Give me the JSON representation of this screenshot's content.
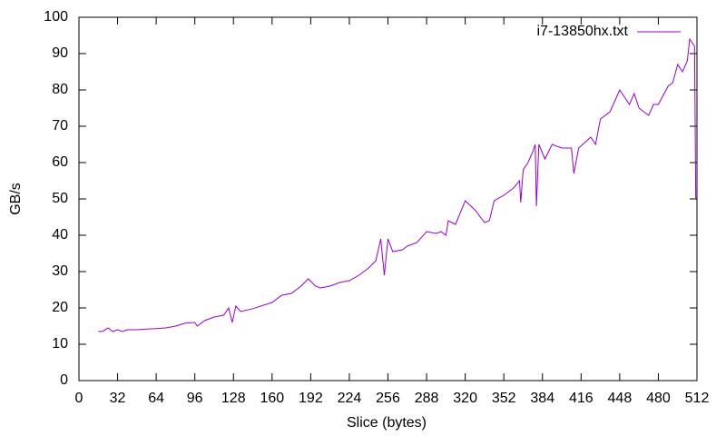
{
  "chart_data": {
    "type": "line",
    "xlabel": "Slice (bytes)",
    "ylabel": "GB/s",
    "xlim": [
      0,
      512
    ],
    "xticks": [
      0,
      32,
      64,
      96,
      128,
      160,
      192,
      224,
      256,
      288,
      320,
      352,
      384,
      416,
      448,
      480,
      512
    ],
    "ylim": [
      0,
      100
    ],
    "yticks": [
      0,
      10,
      20,
      30,
      40,
      50,
      60,
      70,
      80,
      90,
      100
    ],
    "grid": false,
    "legend": "top-right",
    "series": [
      {
        "name": "i7-13850hx.txt",
        "color": "#9400d3",
        "x": [
          16,
          20,
          24,
          28,
          32,
          36,
          40,
          48,
          56,
          64,
          72,
          80,
          88,
          96,
          98,
          104,
          112,
          120,
          124,
          127,
          130,
          134,
          144,
          160,
          168,
          176,
          184,
          190,
          196,
          200,
          208,
          216,
          224,
          232,
          240,
          246,
          250,
          253,
          256,
          260,
          268,
          272,
          280,
          288,
          296,
          300,
          304,
          306,
          312,
          320,
          328,
          336,
          340,
          344,
          352,
          360,
          365,
          366,
          368,
          372,
          376,
          378,
          379,
          381,
          386,
          392,
          400,
          408,
          410,
          414,
          424,
          428,
          432,
          440,
          448,
          456,
          460,
          464,
          472,
          476,
          480,
          488,
          492,
          496,
          500,
          504,
          506,
          508,
          510,
          511
        ],
        "values": [
          13.5,
          13.6,
          14.5,
          13.5,
          14,
          13.5,
          14,
          14,
          14.2,
          14.3,
          14.5,
          15,
          15.8,
          16,
          15,
          16.5,
          17.5,
          18,
          20,
          16,
          20.5,
          19,
          19.8,
          21.5,
          23.5,
          24,
          26,
          28,
          26,
          25.5,
          26,
          27,
          27.5,
          29,
          31,
          33,
          39,
          29,
          39,
          35.5,
          36,
          37,
          38,
          41,
          40.5,
          41,
          40,
          44,
          43,
          49.5,
          47,
          43.5,
          44,
          49.5,
          51,
          53,
          55,
          49,
          58,
          60,
          63,
          65,
          48,
          65,
          61,
          65,
          64,
          64,
          57,
          64,
          67,
          65,
          72,
          74,
          80,
          76,
          79,
          75,
          73,
          76,
          76,
          81,
          82,
          87,
          85,
          88,
          94,
          93,
          92,
          50
        ]
      }
    ]
  }
}
